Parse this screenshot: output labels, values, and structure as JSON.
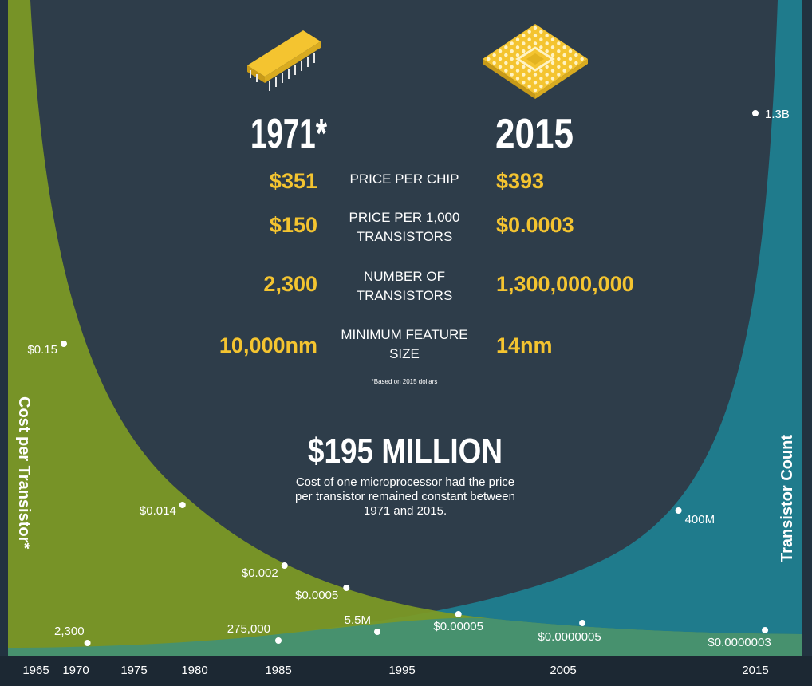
{
  "colors": {
    "background": "#2e3d4a",
    "cost_area": "#7e9a24",
    "count_area": "#1f7b8c",
    "accent_yellow": "#f4c430",
    "text_white": "#ffffff",
    "axis_bar": "#1c2833"
  },
  "icons": {
    "left_chip": "dip-chip-icon",
    "right_chip": "bga-chip-icon"
  },
  "comparison": {
    "left_year": "1971*",
    "right_year": "2015",
    "rows": [
      {
        "label": "PRICE PER CHIP",
        "left": "$351",
        "right": "$393"
      },
      {
        "label": "PRICE PER 1,000 TRANSISTORS",
        "left": "$150",
        "right": "$0.0003"
      },
      {
        "label": "NUMBER OF TRANSISTORS",
        "left": "2,300",
        "right": "1,300,000,000"
      },
      {
        "label": "MINIMUM FEATURE SIZE",
        "left": "10,000nm",
        "right": "14nm"
      }
    ],
    "footnote": "*Based on 2015 dollars"
  },
  "headline": {
    "value": "$195 MILLION",
    "caption": "Cost of one microprocessor had the price per transistor remained constant between 1971 and 2015."
  },
  "chart_data": {
    "type": "area",
    "xlim": [
      1962,
      2019
    ],
    "x_ticks": [
      "1965",
      "1970",
      "1975",
      "1980",
      "1985",
      "1995",
      "2005",
      "2015"
    ],
    "left_axis_label": "Cost per Transistor*",
    "right_axis_label": "Transistor Count",
    "series": [
      {
        "name": "Cost per Transistor*",
        "points": [
          {
            "x": 1968.5,
            "label": "$0.15"
          },
          {
            "x": 1979,
            "label": "$0.014"
          },
          {
            "x": 1985.5,
            "label": "$0.002"
          },
          {
            "x": 1990.5,
            "label": "$0.0005"
          },
          {
            "x": 1998.5,
            "label": "$0.00005"
          },
          {
            "x": 2006,
            "label": "$0.0000005"
          },
          {
            "x": 2015.5,
            "label": "$0.0000003"
          }
        ]
      },
      {
        "name": "Transistor Count",
        "points": [
          {
            "x": 1971,
            "label": "2,300"
          },
          {
            "x": 1985,
            "label": "275,000"
          },
          {
            "x": 1993,
            "label": "5.5M"
          },
          {
            "x": 2011,
            "label": "400M"
          },
          {
            "x": 2015,
            "label": "1.3B"
          }
        ]
      }
    ]
  }
}
